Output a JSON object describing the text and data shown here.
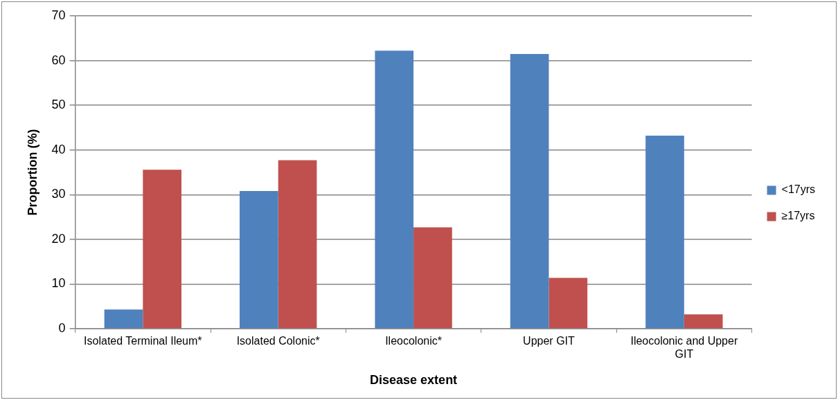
{
  "chart_data": {
    "type": "bar",
    "categories": [
      "Isolated Terminal Ileum*",
      "Isolated Colonic*",
      "Ileocolonic*",
      "Upper GIT",
      "Ileocolonic and Upper GIT"
    ],
    "series": [
      {
        "name": "<17yrs",
        "color": "#4f81bd",
        "values": [
          4.3,
          30.8,
          62.2,
          61.5,
          43.2
        ]
      },
      {
        "name": "≥17yrs",
        "color": "#c0504d",
        "values": [
          35.6,
          37.7,
          22.7,
          11.4,
          3.2
        ]
      }
    ],
    "xlabel": "Disease extent",
    "ylabel": "Proportion (%)",
    "ylim": [
      0,
      70
    ],
    "yticks": [
      0,
      10,
      20,
      30,
      40,
      50,
      60,
      70
    ],
    "grid": "y",
    "legend": "right"
  }
}
